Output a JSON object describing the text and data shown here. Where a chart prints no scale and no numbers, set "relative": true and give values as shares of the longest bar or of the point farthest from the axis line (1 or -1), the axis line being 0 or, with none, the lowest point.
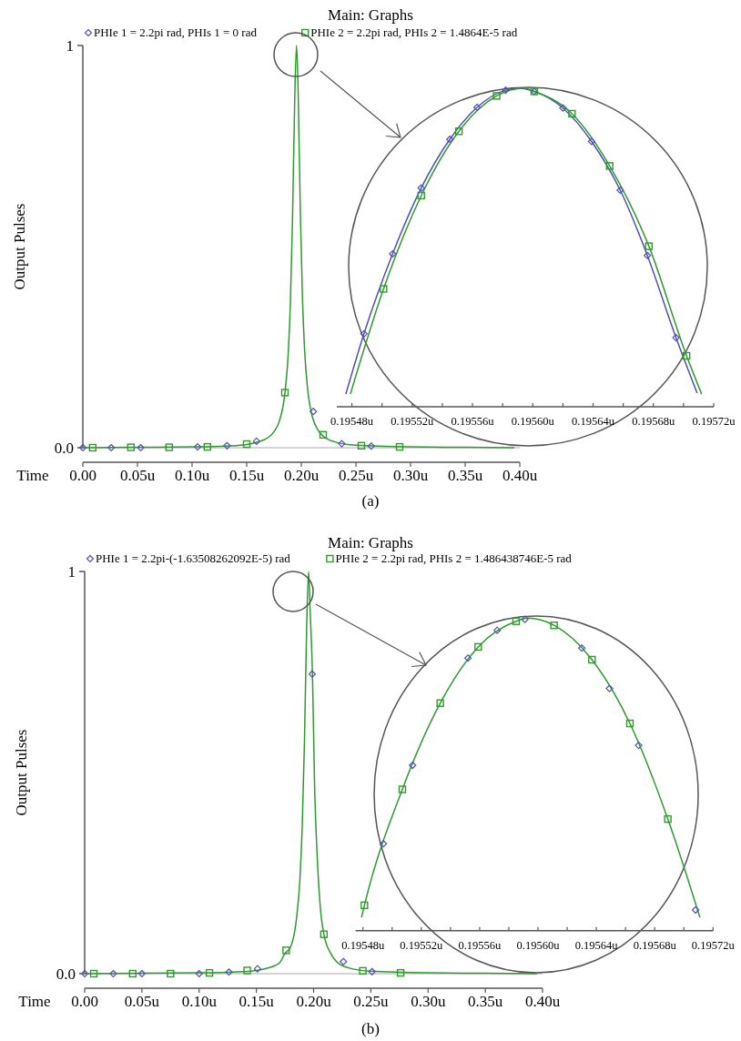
{
  "chart_data": [
    {
      "type": "line",
      "title": "Main: Graphs",
      "xlabel": "Time",
      "ylabel": "Output Pulses",
      "legend": "top",
      "xlim": [
        0,
        0.4
      ],
      "xticks": [
        {
          "value": 0,
          "label": "0.00"
        },
        {
          "value": 0.05,
          "label": "0.05u"
        },
        {
          "value": 0.1,
          "label": "0.10u"
        },
        {
          "value": 0.15,
          "label": "0.15u"
        },
        {
          "value": 0.2,
          "label": "0.20u"
        },
        {
          "value": 0.25,
          "label": "0.25u"
        },
        {
          "value": 0.3,
          "label": "0.30u"
        },
        {
          "value": 0.35,
          "label": "0.35u"
        },
        {
          "value": 0.4,
          "label": "0.40u"
        }
      ],
      "ylim": [
        0,
        1
      ],
      "yticks": [
        {
          "value": 0,
          "label": "0.0"
        },
        1
      ],
      "annotations": [
        "(a)"
      ],
      "series": [
        {
          "type": "line",
          "color": "#2e9a2e",
          "marker": "none",
          "x": [
            0,
            0.05,
            0.1,
            0.13,
            0.15,
            0.16,
            0.17,
            0.175,
            0.18,
            0.185,
            0.188,
            0.19,
            0.192,
            0.194,
            0.1956,
            0.197,
            0.199,
            0.201,
            0.203,
            0.206,
            0.21,
            0.215,
            0.22,
            0.23,
            0.25,
            0.3,
            0.35,
            0.395
          ],
          "values": [
            0,
            0.001,
            0.002,
            0.004,
            0.008,
            0.014,
            0.026,
            0.04,
            0.067,
            0.136,
            0.233,
            0.36,
            0.575,
            0.87,
            1,
            0.9,
            0.6,
            0.376,
            0.243,
            0.14,
            0.078,
            0.045,
            0.029,
            0.015,
            0.006,
            0.002,
            0.001,
            0
          ]
        },
        {
          "type": "scatter",
          "name": "PHIe 1 = 2.2pi rad, PHIs 1 = 0 rad",
          "color": "#5050b0",
          "marker": "diamond",
          "x": [
            0,
            0.026,
            0.053,
            0.105,
            0.132,
            0.159,
            0.211,
            0.237,
            0.264
          ],
          "values": [
            0,
            0,
            0,
            0.002,
            0.005,
            0.016,
            0.09,
            0.01,
            0.004
          ]
        },
        {
          "type": "scatter",
          "name": "PHIe 2 = 2.2pi rad, PHIs 2 = 1.4864E-5 rad",
          "color": "#2e9a2e",
          "marker": "square",
          "x": [
            0.009,
            0.044,
            0.079,
            0.114,
            0.15,
            0.185,
            0.22,
            0.255,
            0.29
          ],
          "values": [
            0,
            0.001,
            0.001,
            0.002,
            0.009,
            0.137,
            0.032,
            0.005,
            0.002
          ]
        }
      ]
    },
    {
      "type": "line",
      "relative": true,
      "tick_labels": "x",
      "xlim": [
        0.19547,
        0.19572
      ],
      "xticks": [
        {
          "value": 0.19548,
          "label": "0.19548u"
        },
        {
          "value": 0.1955,
          "label": null
        },
        {
          "value": 0.19552,
          "label": "0.19552u"
        },
        {
          "value": 0.19554,
          "label": null
        },
        {
          "value": 0.19556,
          "label": "0.19556u"
        },
        {
          "value": 0.19558,
          "label": null
        },
        {
          "value": 0.1956,
          "label": "0.19560u"
        },
        {
          "value": 0.19562,
          "label": null
        },
        {
          "value": 0.19564,
          "label": "0.19564u"
        },
        {
          "value": 0.19566,
          "label": null
        },
        {
          "value": 0.19568,
          "label": "0.19568u"
        },
        {
          "value": 0.1957,
          "label": null
        },
        {
          "value": 0.19572,
          "label": "0.19572u"
        }
      ],
      "series": [
        {
          "type": "line",
          "color": "#5050b0",
          "marker": "none",
          "x": [
            0.195476,
            0.195488,
            0.195507,
            0.195526,
            0.195545,
            0.195563,
            0.195582,
            0.195591,
            0.195601,
            0.19562,
            0.195639,
            0.195658,
            0.195676,
            0.195695,
            0.195709
          ],
          "values": [
            0.04,
            0.229,
            0.48,
            0.687,
            0.84,
            0.94,
            0.994,
            1,
            0.99,
            0.938,
            0.833,
            0.68,
            0.475,
            0.217,
            0.043
          ]
        },
        {
          "type": "line",
          "color": "#2e9a2e",
          "marker": "none",
          "x": [
            0.195479,
            0.195501,
            0.195526,
            0.195551,
            0.195576,
            0.195594,
            0.195601,
            0.195626,
            0.195651,
            0.195677,
            0.195702,
            0.195712
          ],
          "values": [
            0.04,
            0.37,
            0.663,
            0.865,
            0.976,
            1,
            0.99,
            0.92,
            0.756,
            0.504,
            0.16,
            0.04
          ]
        },
        {
          "type": "scatter",
          "color": "#5050b0",
          "marker": "diamond",
          "x": [
            0.195488,
            0.195507,
            0.195526,
            0.195545,
            0.195563,
            0.195582,
            0.195601,
            0.19562,
            0.195639,
            0.195658,
            0.195676,
            0.195695
          ],
          "values": [
            0.229,
            0.48,
            0.687,
            0.84,
            0.94,
            0.994,
            0.99,
            0.938,
            0.833,
            0.68,
            0.475,
            0.217
          ]
        },
        {
          "type": "scatter",
          "color": "#2e9a2e",
          "marker": "square",
          "x": [
            0.195501,
            0.195526,
            0.195551,
            0.195576,
            0.195601,
            0.195626,
            0.195651,
            0.195677,
            0.195702
          ],
          "values": [
            0.37,
            0.663,
            0.865,
            0.976,
            0.99,
            0.92,
            0.756,
            0.504,
            0.16
          ]
        }
      ]
    },
    {
      "type": "line",
      "title": "Main: Graphs",
      "xlabel": "Time",
      "ylabel": "Output Pulses",
      "legend": "top",
      "xlim": [
        0,
        0.4
      ],
      "xticks": [
        {
          "value": 0,
          "label": "0.00"
        },
        {
          "value": 0.05,
          "label": "0.05u"
        },
        {
          "value": 0.1,
          "label": "0.10u"
        },
        {
          "value": 0.15,
          "label": "0.15u"
        },
        {
          "value": 0.2,
          "label": "0.20u"
        },
        {
          "value": 0.25,
          "label": "0.25u"
        },
        {
          "value": 0.3,
          "label": "0.30u"
        },
        {
          "value": 0.35,
          "label": "0.35u"
        },
        {
          "value": 0.4,
          "label": "0.40u"
        }
      ],
      "ylim": [
        0,
        1
      ],
      "yticks": [
        {
          "value": 0,
          "label": "0.0"
        },
        1
      ],
      "annotations": [
        "(b)"
      ],
      "series": [
        {
          "type": "line",
          "color": "#2e9a2e",
          "marker": "none",
          "x": [
            0,
            0.05,
            0.1,
            0.13,
            0.15,
            0.16,
            0.17,
            0.175,
            0.18,
            0.185,
            0.188,
            0.19,
            0.192,
            0.194,
            0.1956,
            0.197,
            0.199,
            0.201,
            0.203,
            0.206,
            0.209,
            0.215,
            0.22,
            0.23,
            0.25,
            0.3,
            0.35,
            0.395
          ],
          "values": [
            0,
            0.001,
            0.002,
            0.004,
            0.008,
            0.014,
            0.026,
            0.05,
            0.067,
            0.136,
            0.233,
            0.36,
            0.575,
            0.87,
            1,
            0.9,
            0.745,
            0.45,
            0.3,
            0.16,
            0.098,
            0.05,
            0.03,
            0.015,
            0.006,
            0.002,
            0.001,
            0
          ]
        },
        {
          "type": "scatter",
          "name": "PHIe 1 = 2.2pi-(-1.63508262092E-5) rad",
          "color": "#5050b0",
          "marker": "diamond",
          "x": [
            0,
            0.025,
            0.05,
            0.1,
            0.126,
            0.151,
            0.1988,
            0.226,
            0.251
          ],
          "values": [
            0,
            0,
            0,
            0,
            0.004,
            0.012,
            0.745,
            0.03,
            0.005
          ]
        },
        {
          "type": "scatter",
          "name": "PHIe 2 = 2.2pi rad, PHIs 2 = 1.486438746E-5 rad",
          "color": "#2e9a2e",
          "marker": "square",
          "x": [
            0.008,
            0.042,
            0.075,
            0.109,
            0.142,
            0.176,
            0.209,
            0.243,
            0.276
          ],
          "values": [
            0,
            0,
            0,
            0.002,
            0.008,
            0.058,
            0.098,
            0.007,
            0.002
          ]
        }
      ]
    },
    {
      "type": "line",
      "relative": true,
      "tick_labels": "x",
      "xlim": [
        0.195475,
        0.19572
      ],
      "xticks": [
        {
          "value": 0.19548,
          "label": "0.19548u"
        },
        {
          "value": 0.1955,
          "label": null
        },
        {
          "value": 0.19552,
          "label": "0.19552u"
        },
        {
          "value": 0.19554,
          "label": null
        },
        {
          "value": 0.19556,
          "label": "0.19556u"
        },
        {
          "value": 0.19558,
          "label": null
        },
        {
          "value": 0.1956,
          "label": "0.19560u"
        },
        {
          "value": 0.19562,
          "label": null
        },
        {
          "value": 0.19564,
          "label": "0.19564u"
        },
        {
          "value": 0.19566,
          "label": null
        },
        {
          "value": 0.19568,
          "label": "0.19568u"
        },
        {
          "value": 0.1957,
          "label": null
        },
        {
          "value": 0.19572,
          "label": "0.19572u"
        }
      ],
      "series": [
        {
          "type": "line",
          "color": "#2e9a2e",
          "marker": "none",
          "x": [
            0.195479,
            0.195481,
            0.195507,
            0.195533,
            0.195559,
            0.195585,
            0.195593,
            0.195611,
            0.195637,
            0.195663,
            0.195689,
            0.195711
          ],
          "values": [
            0.042,
            0.081,
            0.452,
            0.728,
            0.908,
            0.99,
            1,
            0.977,
            0.867,
            0.663,
            0.357,
            0.042
          ]
        },
        {
          "type": "scatter",
          "color": "#5050b0",
          "marker": "diamond",
          "x": [
            0.195494,
            0.195514,
            0.195552,
            0.195572,
            0.195591,
            0.19563,
            0.195649,
            0.195669,
            0.195708
          ],
          "values": [
            0.278,
            0.529,
            0.872,
            0.961,
            0.996,
            0.904,
            0.775,
            0.593,
            0.066
          ]
        },
        {
          "type": "scatter",
          "color": "#2e9a2e",
          "marker": "square",
          "x": [
            0.195481,
            0.195507,
            0.195533,
            0.195559,
            0.195585,
            0.195611,
            0.195637,
            0.195663,
            0.195689
          ],
          "values": [
            0.081,
            0.452,
            0.728,
            0.908,
            0.99,
            0.977,
            0.867,
            0.663,
            0.357
          ]
        }
      ]
    }
  ]
}
